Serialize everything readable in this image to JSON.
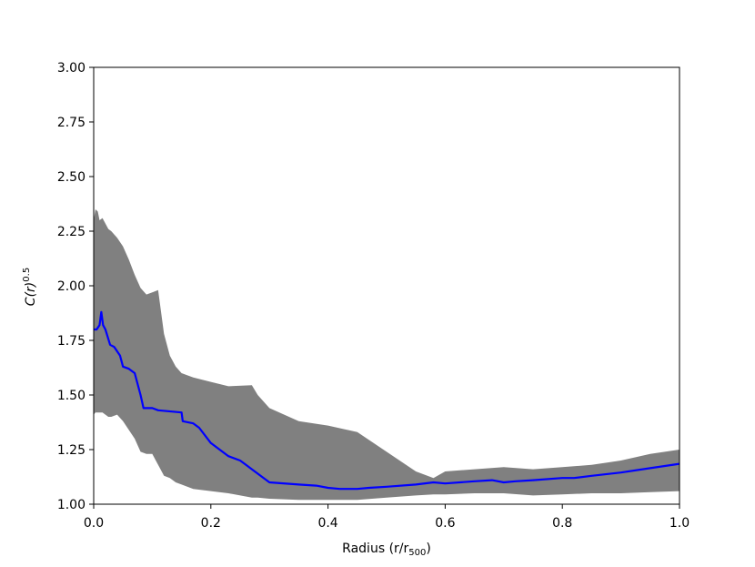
{
  "chart_data": {
    "type": "line",
    "title": "",
    "xlabel": {
      "main": "Radius (r/r",
      "sub": "500",
      "end": ")"
    },
    "ylabel": {
      "main": "C(r)",
      "sup": "0.5"
    },
    "xlim": [
      0.0,
      1.0
    ],
    "ylim": [
      1.0,
      3.0
    ],
    "xticks": [
      0.0,
      0.2,
      0.4,
      0.6,
      0.8,
      1.0
    ],
    "xtick_labels": [
      "0.0",
      "0.2",
      "0.4",
      "0.6",
      "0.8",
      "1.0"
    ],
    "yticks": [
      1.0,
      1.25,
      1.5,
      1.75,
      2.0,
      2.25,
      2.5,
      2.75,
      3.0
    ],
    "ytick_labels": [
      "1.00",
      "1.25",
      "1.50",
      "1.75",
      "2.00",
      "2.25",
      "2.50",
      "2.75",
      "3.00"
    ],
    "grid": false,
    "colors": {
      "line": "#0000ff",
      "band": "#808080"
    },
    "series": [
      {
        "values_x": [
          0.0,
          0.005,
          0.01,
          0.013,
          0.016,
          0.02,
          0.028,
          0.035,
          0.04,
          0.045,
          0.05,
          0.06,
          0.07,
          0.075,
          0.08,
          0.085,
          0.1,
          0.11,
          0.15,
          0.152,
          0.17,
          0.18,
          0.2,
          0.23,
          0.25,
          0.26,
          0.27,
          0.3,
          0.35,
          0.38,
          0.4,
          0.42,
          0.45,
          0.47,
          0.5,
          0.55,
          0.58,
          0.6,
          0.65,
          0.68,
          0.7,
          0.72,
          0.75,
          0.8,
          0.82,
          0.85,
          0.9,
          0.95,
          1.0
        ],
        "values_y": [
          1.8,
          1.8,
          1.82,
          1.88,
          1.82,
          1.8,
          1.73,
          1.72,
          1.7,
          1.68,
          1.63,
          1.62,
          1.6,
          1.55,
          1.5,
          1.44,
          1.44,
          1.43,
          1.42,
          1.38,
          1.37,
          1.35,
          1.28,
          1.22,
          1.2,
          1.18,
          1.16,
          1.1,
          1.09,
          1.085,
          1.075,
          1.07,
          1.07,
          1.075,
          1.08,
          1.09,
          1.1,
          1.095,
          1.105,
          1.11,
          1.1,
          1.105,
          1.11,
          1.12,
          1.12,
          1.13,
          1.145,
          1.165,
          1.185
        ]
      }
    ],
    "band": {
      "x": [
        0.0,
        0.003,
        0.007,
        0.01,
        0.015,
        0.025,
        0.03,
        0.04,
        0.05,
        0.06,
        0.07,
        0.08,
        0.09,
        0.1,
        0.11,
        0.12,
        0.13,
        0.14,
        0.15,
        0.17,
        0.2,
        0.23,
        0.27,
        0.28,
        0.3,
        0.35,
        0.4,
        0.45,
        0.5,
        0.55,
        0.58,
        0.6,
        0.65,
        0.7,
        0.75,
        0.8,
        0.85,
        0.9,
        0.95,
        1.0
      ],
      "upper": [
        2.3,
        2.35,
        2.34,
        2.3,
        2.31,
        2.26,
        2.25,
        2.22,
        2.18,
        2.12,
        2.05,
        1.99,
        1.96,
        1.97,
        1.98,
        1.78,
        1.68,
        1.63,
        1.6,
        1.58,
        1.56,
        1.54,
        1.545,
        1.5,
        1.44,
        1.38,
        1.36,
        1.33,
        1.24,
        1.15,
        1.12,
        1.15,
        1.16,
        1.17,
        1.16,
        1.17,
        1.18,
        1.2,
        1.23,
        1.25
      ],
      "lower": [
        1.41,
        1.42,
        1.42,
        1.42,
        1.42,
        1.4,
        1.4,
        1.41,
        1.38,
        1.34,
        1.3,
        1.24,
        1.23,
        1.23,
        1.18,
        1.13,
        1.12,
        1.1,
        1.09,
        1.07,
        1.06,
        1.05,
        1.03,
        1.03,
        1.025,
        1.02,
        1.02,
        1.02,
        1.03,
        1.04,
        1.045,
        1.045,
        1.05,
        1.05,
        1.04,
        1.045,
        1.05,
        1.05,
        1.055,
        1.06
      ]
    }
  }
}
